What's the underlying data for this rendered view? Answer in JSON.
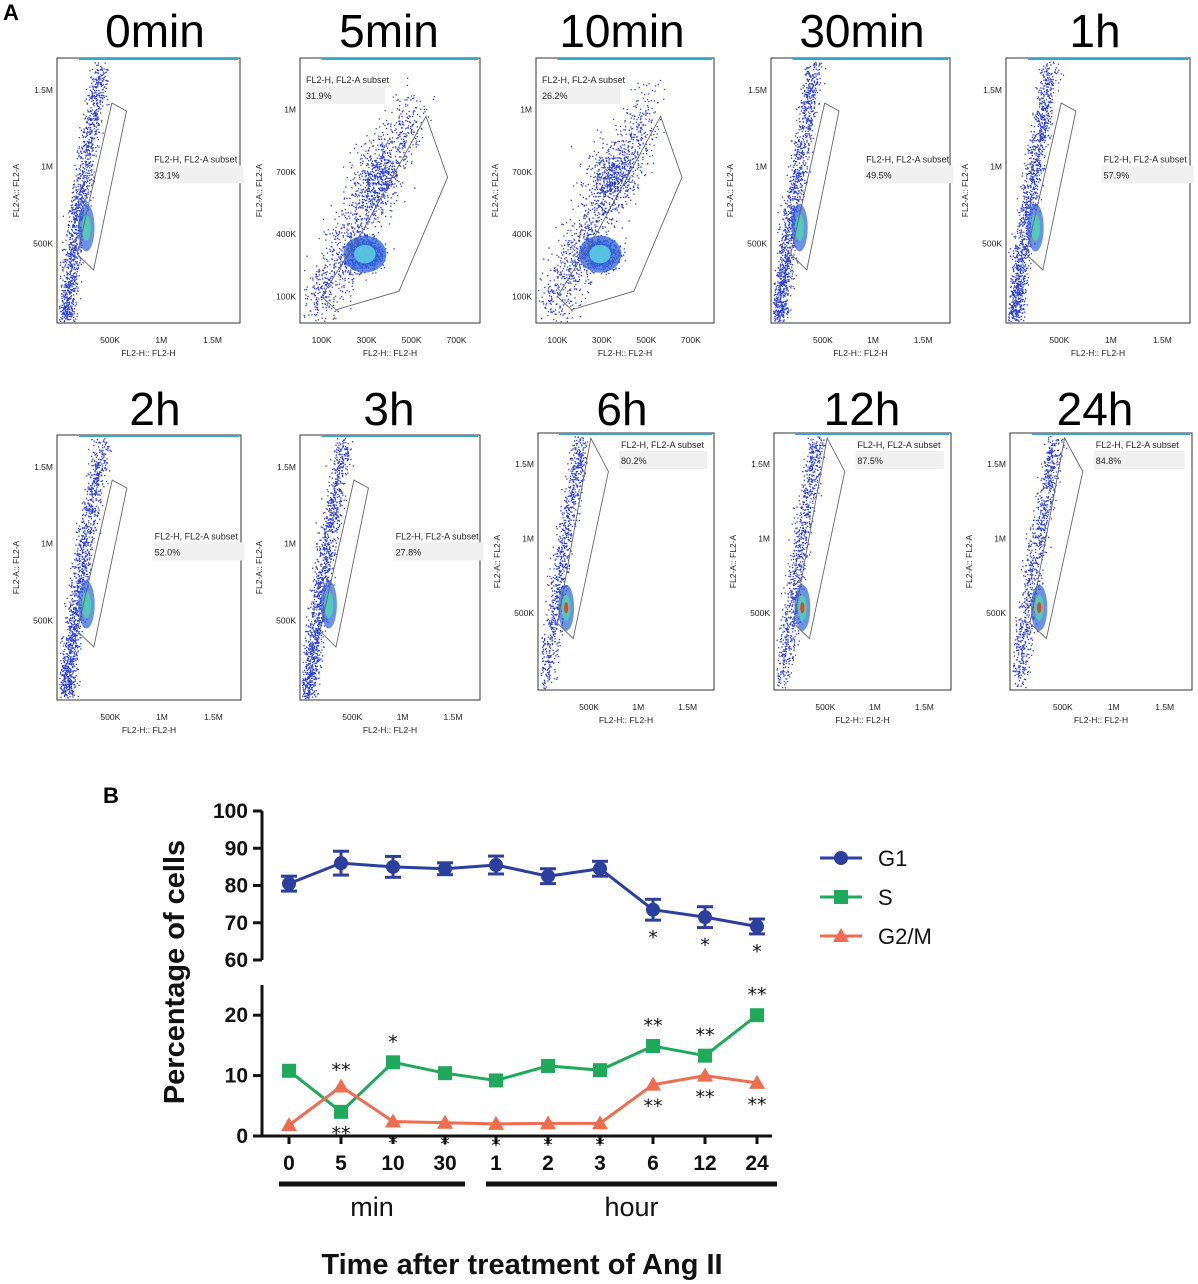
{
  "panel_a": {
    "letter": "A",
    "x_axis_label": "FL2-H:: FL2-H",
    "y_axis_label": "FL2-A:: FL2-A",
    "gate_name": "FL2-H, FL2-A subset",
    "plots": [
      {
        "title": "0min",
        "percent": "33.1%",
        "style": "dense",
        "x_ticks": [
          "500K",
          "1M",
          "1.5M"
        ],
        "y_ticks": [
          "500K",
          "1M",
          "1.5M"
        ]
      },
      {
        "title": "5min",
        "percent": "31.9%",
        "style": "broad",
        "x_ticks": [
          "100K",
          "300K",
          "500K",
          "700K"
        ],
        "y_ticks": [
          "100K",
          "400K",
          "700K",
          "1M"
        ]
      },
      {
        "title": "10min",
        "percent": "26.2%",
        "style": "broad",
        "x_ticks": [
          "100K",
          "300K",
          "500K",
          "700K"
        ],
        "y_ticks": [
          "100K",
          "400K",
          "700K",
          "1M"
        ]
      },
      {
        "title": "30min",
        "percent": "49.5%",
        "style": "dense",
        "x_ticks": [
          "500K",
          "1M",
          "1.5M"
        ],
        "y_ticks": [
          "500K",
          "1M",
          "1.5M"
        ]
      },
      {
        "title": "1h",
        "percent": "57.9%",
        "style": "dense",
        "x_ticks": [
          "500K",
          "1M",
          "1.5M"
        ],
        "y_ticks": [
          "500K",
          "1M",
          "1.5M"
        ]
      },
      {
        "title": "2h",
        "percent": "52.0%",
        "style": "dense",
        "x_ticks": [
          "500K",
          "1M",
          "1.5M"
        ],
        "y_ticks": [
          "500K",
          "1M",
          "1.5M"
        ]
      },
      {
        "title": "3h",
        "percent": "27.8%",
        "style": "dense",
        "x_ticks": [
          "500K",
          "1M",
          "1.5M"
        ],
        "y_ticks": [
          "500K",
          "1M",
          "1.5M"
        ]
      },
      {
        "title": "6h",
        "percent": "80.2%",
        "style": "sparse",
        "x_ticks": [
          "500K",
          "1M",
          "1.5M"
        ],
        "y_ticks": [
          "500K",
          "1M",
          "1.5M"
        ]
      },
      {
        "title": "12h",
        "percent": "87.5%",
        "style": "sparse",
        "x_ticks": [
          "500K",
          "1M",
          "1.5M"
        ],
        "y_ticks": [
          "500K",
          "1M",
          "1.5M"
        ]
      },
      {
        "title": "24h",
        "percent": "84.8%",
        "style": "sparse",
        "x_ticks": [
          "500K",
          "1M",
          "1.5M"
        ],
        "y_ticks": [
          "500K",
          "1M",
          "1.5M"
        ]
      }
    ]
  },
  "chart_data": {
    "type": "line",
    "panel_letter": "B",
    "ylabel": "Percentage of cells",
    "xlabel": "Time after treatment of Ang II",
    "categories": [
      "0",
      "5",
      "10",
      "30",
      "1",
      "2",
      "3",
      "6",
      "12",
      "24"
    ],
    "groups": [
      {
        "label": "min",
        "from": 0,
        "to": 3
      },
      {
        "label": "hour",
        "from": 4,
        "to": 9
      }
    ],
    "y_upper_ticks": [
      60,
      70,
      80,
      90,
      100
    ],
    "y_lower_ticks": [
      0,
      10,
      20
    ],
    "y_upper_range": [
      60,
      100
    ],
    "y_lower_range": [
      0,
      25
    ],
    "legend": [
      "G1",
      "S",
      "G2/M"
    ],
    "series": [
      {
        "name": "G1",
        "color": "#2b3f9e",
        "marker": "circle",
        "axis": "upper",
        "values": [
          80.5,
          86,
          85,
          84.5,
          85.5,
          82.5,
          84.5,
          73.5,
          71.5,
          69
        ],
        "errors": [
          2,
          3.2,
          2.8,
          1.6,
          2.4,
          2,
          2,
          2.8,
          2.8,
          2
        ],
        "annotations": [
          "",
          "",
          "",
          "",
          "",
          "",
          "",
          "*",
          "*",
          "*"
        ]
      },
      {
        "name": "S",
        "color": "#1faa5b",
        "marker": "square",
        "axis": "lower",
        "values": [
          10.8,
          4,
          12.2,
          10.4,
          9.2,
          11.6,
          10.9,
          14.9,
          13.3,
          20
        ],
        "annotations": [
          "",
          "**",
          "*",
          "",
          "",
          "",
          "",
          "**",
          "**",
          "**"
        ]
      },
      {
        "name": "G2/M",
        "color": "#f06c4f",
        "marker": "triangle",
        "axis": "lower",
        "values": [
          1.8,
          8.2,
          2.4,
          2.2,
          2,
          2.1,
          2.1,
          8.5,
          10,
          8.8
        ],
        "annotations": [
          "",
          "**",
          "*",
          "*",
          "*",
          "*",
          "*",
          "**",
          "**",
          "**"
        ]
      }
    ]
  }
}
